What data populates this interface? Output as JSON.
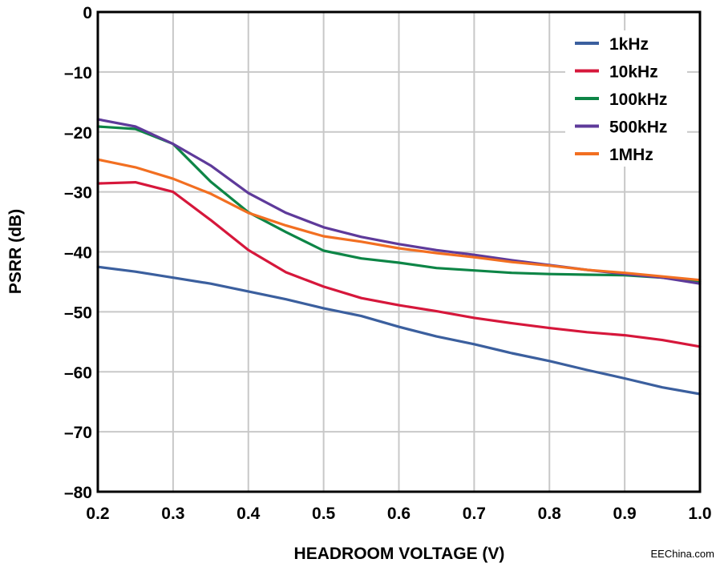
{
  "chart_data": {
    "type": "line",
    "title": "",
    "xlabel": "HEADROOM VOLTAGE (V)",
    "ylabel": "PSRR (dB)",
    "xlim": [
      0.2,
      1.0
    ],
    "ylim": [
      -80,
      0
    ],
    "grid": true,
    "legend_position": "top-right",
    "xticks": [
      "0.2",
      "0.3",
      "0.4",
      "0.5",
      "0.6",
      "0.7",
      "0.8",
      "0.9",
      "1.0"
    ],
    "yticks": [
      "0",
      "–10",
      "–20",
      "–30",
      "–40",
      "–50",
      "–60",
      "–70",
      "–80"
    ],
    "x": [
      0.2,
      0.25,
      0.3,
      0.35,
      0.4,
      0.45,
      0.5,
      0.55,
      0.6,
      0.65,
      0.7,
      0.75,
      0.8,
      0.85,
      0.9,
      0.95,
      1.0
    ],
    "series": [
      {
        "name": "1kHz",
        "color": "#3b5f9e",
        "values": [
          -42.5,
          -43.3,
          -44.3,
          -45.3,
          -46.6,
          -47.9,
          -49.4,
          -50.7,
          -52.5,
          -54.1,
          -55.4,
          -56.9,
          -58.2,
          -59.7,
          -61.1,
          -62.6,
          -63.7
        ]
      },
      {
        "name": "10kHz",
        "color": "#d6173b",
        "values": [
          -28.6,
          -28.4,
          -30.0,
          -34.7,
          -39.7,
          -43.4,
          -45.8,
          -47.7,
          -48.9,
          -49.9,
          -51.0,
          -51.9,
          -52.7,
          -53.4,
          -53.9,
          -54.7,
          -55.8
        ]
      },
      {
        "name": "100kHz",
        "color": "#0d8546",
        "values": [
          -19.1,
          -19.5,
          -22.0,
          -28.3,
          -33.4,
          -36.7,
          -39.8,
          -41.1,
          -41.8,
          -42.7,
          -43.1,
          -43.5,
          -43.7,
          -43.8,
          -43.9,
          -44.3,
          -45.0
        ]
      },
      {
        "name": "500kHz",
        "color": "#5e3a9a",
        "values": [
          -17.9,
          -19.1,
          -22.0,
          -25.6,
          -30.2,
          -33.5,
          -35.9,
          -37.5,
          -38.7,
          -39.7,
          -40.5,
          -41.4,
          -42.2,
          -43.0,
          -43.7,
          -44.3,
          -45.3
        ]
      },
      {
        "name": "1MHz",
        "color": "#f26f21",
        "values": [
          -24.6,
          -25.9,
          -27.8,
          -30.3,
          -33.5,
          -35.6,
          -37.4,
          -38.3,
          -39.4,
          -40.2,
          -40.9,
          -41.7,
          -42.3,
          -43.0,
          -43.5,
          -44.1,
          -44.7
        ]
      }
    ],
    "watermark": "EEChina.com"
  }
}
